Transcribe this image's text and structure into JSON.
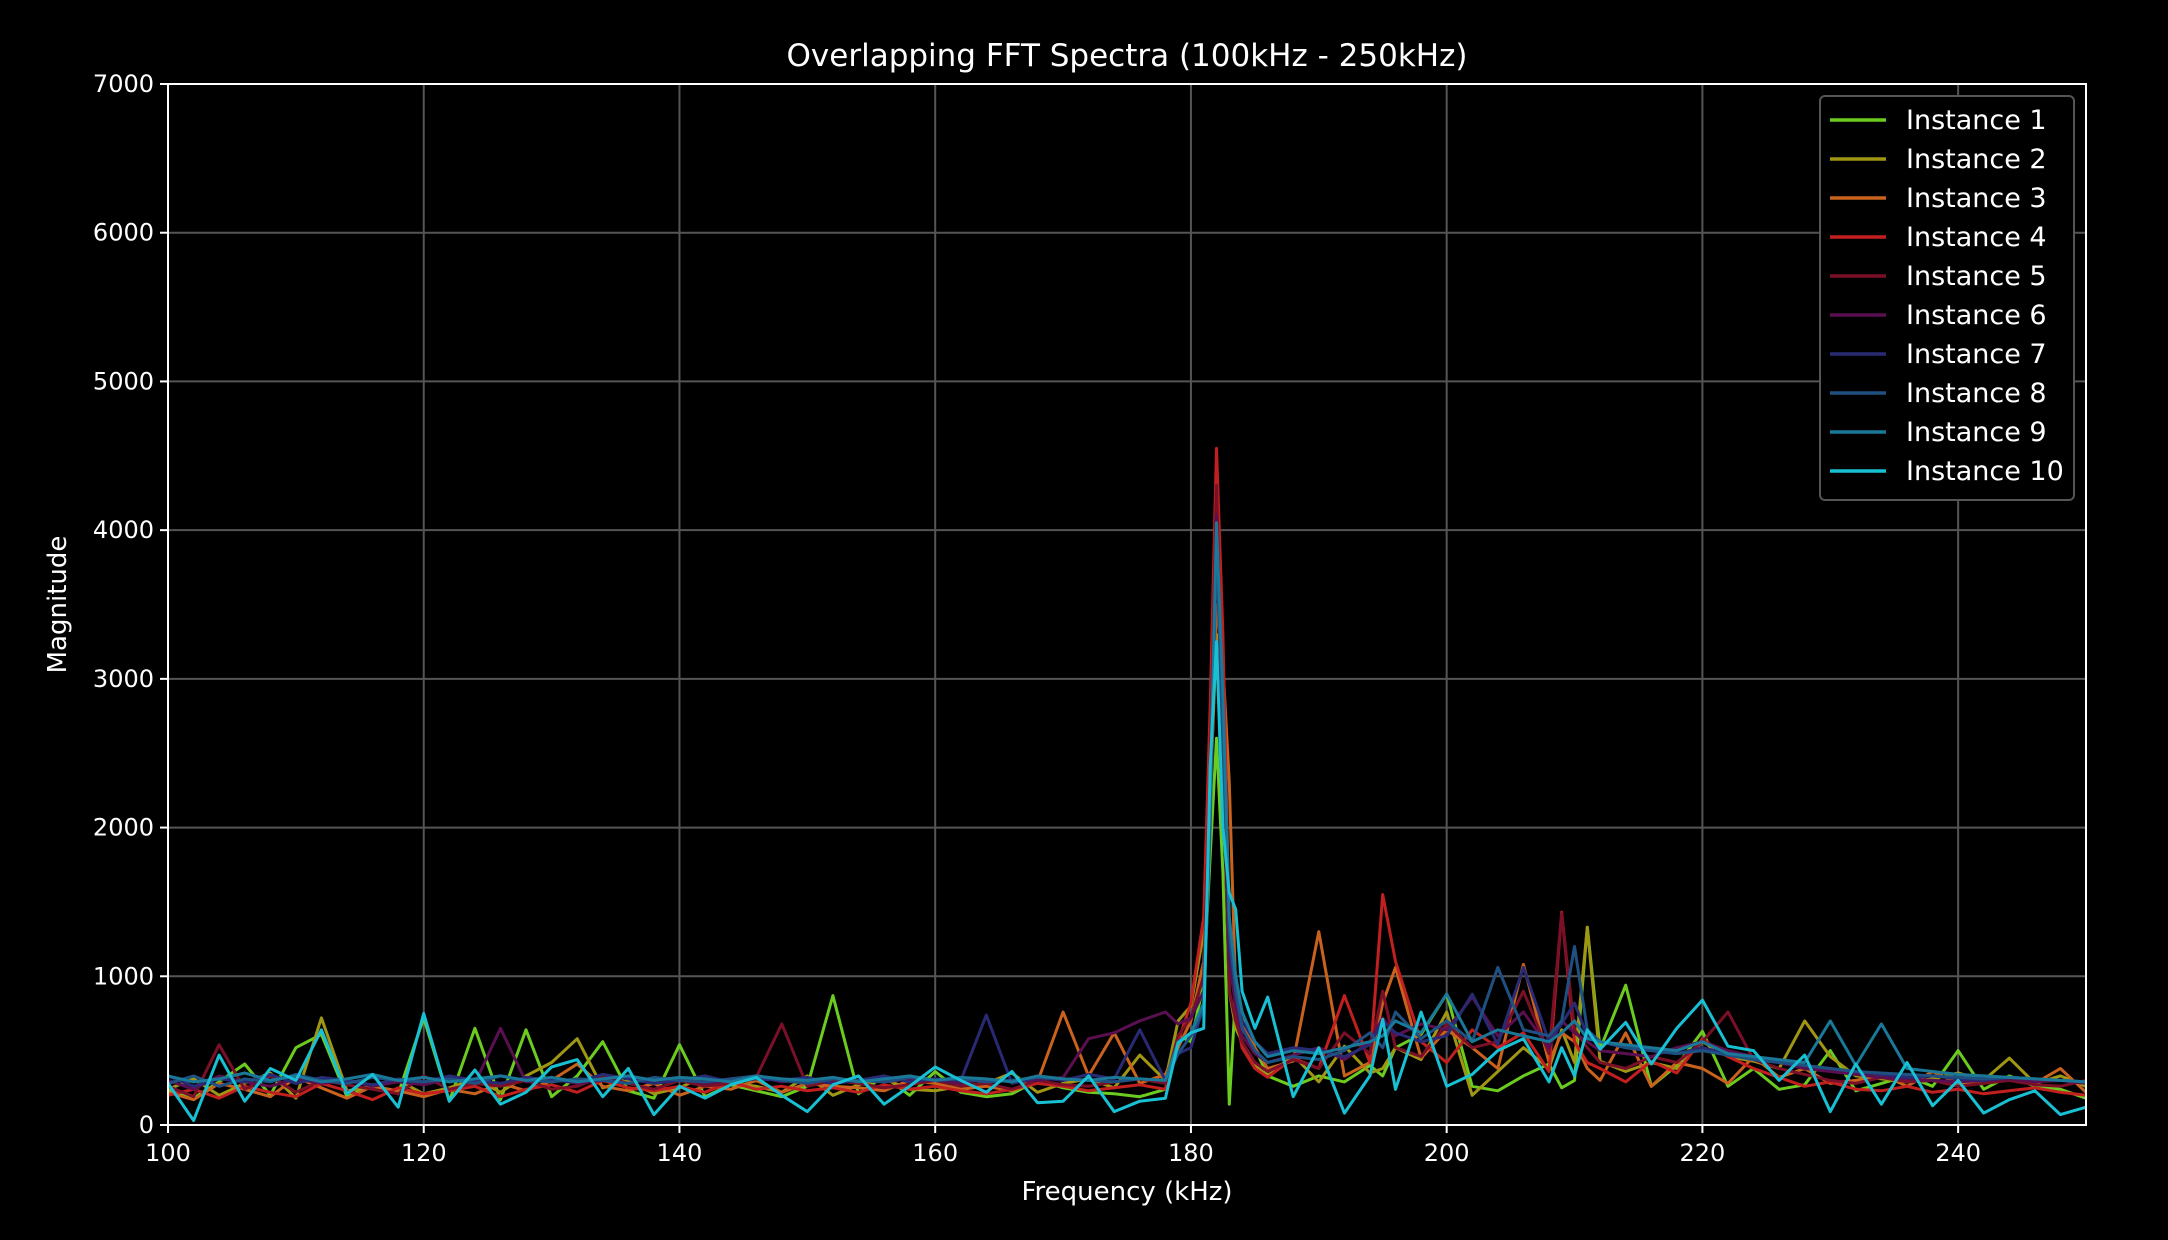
{
  "chart_data": {
    "type": "line",
    "title": "Overlapping FFT Spectra (100kHz - 250kHz)",
    "xlabel": "Frequency (kHz)",
    "ylabel": "Magnitude",
    "xlim": [
      100,
      250
    ],
    "ylim": [
      0,
      7000
    ],
    "x_ticks": [
      100,
      120,
      140,
      160,
      180,
      200,
      220,
      240
    ],
    "y_ticks": [
      0,
      1000,
      2000,
      3000,
      4000,
      5000,
      6000,
      7000
    ],
    "x_tick_labels": [
      "100",
      "120",
      "140",
      "160",
      "180",
      "200",
      "220",
      "240"
    ],
    "y_tick_labels": [
      "0",
      "1000",
      "2000",
      "3000",
      "4000",
      "5000",
      "6000",
      "7000"
    ],
    "grid": true,
    "legend_position": "top-right",
    "x": [
      100,
      102,
      104,
      106,
      108,
      110,
      112,
      114,
      116,
      118,
      120,
      122,
      124,
      126,
      128,
      130,
      132,
      134,
      136,
      138,
      140,
      142,
      144,
      146,
      148,
      150,
      152,
      154,
      156,
      158,
      160,
      162,
      164,
      166,
      168,
      170,
      172,
      174,
      176,
      178,
      179,
      180,
      181,
      181.5,
      182,
      182.5,
      183,
      183.5,
      184,
      185,
      186,
      188,
      190,
      192,
      194,
      195,
      196,
      198,
      200,
      202,
      204,
      206,
      208,
      209,
      210,
      211,
      212,
      214,
      216,
      218,
      220,
      222,
      224,
      226,
      228,
      230,
      232,
      234,
      236,
      238,
      240,
      242,
      244,
      246,
      248,
      250
    ],
    "series": [
      {
        "name": "Instance 1",
        "color": "#6bcb1f",
        "values": [
          230,
          180,
          290,
          410,
          200,
          520,
          610,
          190,
          270,
          210,
          720,
          160,
          650,
          170,
          640,
          190,
          330,
          560,
          230,
          180,
          540,
          190,
          270,
          230,
          190,
          260,
          870,
          210,
          330,
          200,
          360,
          220,
          190,
          210,
          300,
          250,
          220,
          210,
          190,
          240,
          600,
          560,
          950,
          1800,
          2600,
          1700,
          140,
          900,
          760,
          520,
          330,
          260,
          330,
          290,
          400,
          330,
          520,
          610,
          880,
          260,
          230,
          330,
          410,
          250,
          300,
          1330,
          510,
          940,
          260,
          400,
          630,
          260,
          380,
          240,
          270,
          500,
          230,
          280,
          330,
          260,
          500,
          240,
          330,
          260,
          240,
          180
        ]
      },
      {
        "name": "Instance 2",
        "color": "#9f9614",
        "values": [
          240,
          310,
          200,
          280,
          350,
          180,
          720,
          230,
          260,
          300,
          210,
          250,
          310,
          220,
          330,
          420,
          580,
          250,
          300,
          210,
          250,
          330,
          280,
          260,
          220,
          330,
          200,
          270,
          310,
          240,
          230,
          260,
          280,
          350,
          220,
          280,
          310,
          250,
          470,
          300,
          700,
          800,
          1300,
          2200,
          3300,
          2500,
          900,
          650,
          560,
          400,
          330,
          470,
          290,
          530,
          350,
          380,
          520,
          440,
          760,
          200,
          360,
          520,
          380,
          640,
          420,
          1330,
          430,
          360,
          420,
          380,
          560,
          460,
          430,
          380,
          700,
          460,
          330,
          310,
          290,
          310,
          350,
          300,
          450,
          280,
          330,
          260
        ]
      },
      {
        "name": "Instance 3",
        "color": "#c8621c",
        "values": [
          220,
          170,
          280,
          240,
          190,
          320,
          250,
          180,
          260,
          230,
          190,
          240,
          210,
          280,
          230,
          300,
          410,
          260,
          230,
          280,
          200,
          260,
          240,
          300,
          220,
          280,
          260,
          250,
          230,
          300,
          280,
          240,
          260,
          230,
          290,
          760,
          330,
          620,
          280,
          340,
          520,
          700,
          1100,
          2100,
          3500,
          3100,
          2300,
          900,
          700,
          520,
          380,
          430,
          1300,
          330,
          420,
          820,
          1060,
          450,
          640,
          520,
          380,
          1080,
          420,
          620,
          560,
          380,
          300,
          620,
          260,
          420,
          380,
          280,
          460,
          320,
          380,
          280,
          300,
          340,
          260,
          360,
          280,
          300,
          320,
          280,
          380,
          220
        ]
      },
      {
        "name": "Instance 4",
        "color": "#c21f1f",
        "values": [
          200,
          240,
          180,
          260,
          220,
          190,
          280,
          230,
          170,
          250,
          210,
          230,
          260,
          190,
          240,
          270,
          220,
          300,
          250,
          230,
          260,
          220,
          290,
          240,
          260,
          230,
          250,
          220,
          270,
          240,
          260,
          230,
          210,
          240,
          280,
          260,
          230,
          250,
          270,
          240,
          560,
          820,
          1400,
          2800,
          4550,
          3300,
          1300,
          760,
          520,
          380,
          320,
          450,
          380,
          870,
          420,
          1550,
          1100,
          560,
          420,
          640,
          520,
          620,
          360,
          1430,
          560,
          420,
          380,
          290,
          430,
          350,
          580,
          460,
          380,
          320,
          260,
          290,
          240,
          230,
          260,
          220,
          240,
          210,
          230,
          250,
          220,
          200
        ]
      },
      {
        "name": "Instance 5",
        "color": "#7a1028",
        "values": [
          260,
          190,
          540,
          240,
          330,
          220,
          300,
          270,
          240,
          210,
          330,
          240,
          280,
          260,
          300,
          240,
          260,
          330,
          280,
          240,
          300,
          260,
          280,
          320,
          680,
          260,
          300,
          280,
          250,
          270,
          300,
          260,
          280,
          240,
          300,
          270,
          260,
          290,
          310,
          280,
          600,
          720,
          1000,
          2400,
          4300,
          2600,
          900,
          700,
          560,
          420,
          360,
          440,
          380,
          620,
          480,
          900,
          520,
          460,
          680,
          520,
          560,
          900,
          480,
          1420,
          640,
          520,
          420,
          380,
          460,
          420,
          560,
          760,
          440,
          380,
          340,
          300,
          280,
          320,
          290,
          300,
          260,
          280,
          300,
          270,
          260,
          300
        ]
      },
      {
        "name": "Instance 6",
        "color": "#5a1050",
        "values": [
          300,
          240,
          330,
          290,
          260,
          310,
          280,
          300,
          260,
          290,
          270,
          310,
          280,
          650,
          290,
          310,
          280,
          300,
          320,
          290,
          310,
          280,
          300,
          330,
          290,
          310,
          280,
          300,
          290,
          310,
          300,
          280,
          310,
          290,
          300,
          320,
          580,
          620,
          700,
          760,
          680,
          720,
          900,
          2200,
          4100,
          2400,
          1100,
          800,
          600,
          480,
          420,
          470,
          520,
          440,
          560,
          720,
          600,
          680,
          640,
          860,
          600,
          760,
          520,
          700,
          620,
          560,
          500,
          480,
          460,
          520,
          560,
          500,
          460,
          420,
          380,
          360,
          340,
          320,
          310,
          300,
          290,
          300,
          310,
          290,
          300,
          280
        ]
      },
      {
        "name": "Instance 7",
        "color": "#282a74",
        "values": [
          330,
          260,
          310,
          290,
          340,
          280,
          320,
          300,
          270,
          310,
          290,
          330,
          300,
          280,
          320,
          300,
          290,
          340,
          310,
          280,
          300,
          330,
          290,
          310,
          300,
          320,
          280,
          300,
          330,
          290,
          310,
          300,
          740,
          280,
          320,
          300,
          340,
          310,
          640,
          300,
          480,
          520,
          800,
          2100,
          4000,
          2800,
          1200,
          900,
          700,
          560,
          480,
          520,
          500,
          460,
          540,
          700,
          620,
          560,
          600,
          880,
          540,
          1060,
          560,
          680,
          820,
          600,
          560,
          520,
          500,
          480,
          520,
          480,
          460,
          440,
          400,
          380,
          360,
          340,
          320,
          330,
          310,
          300,
          320,
          310,
          300,
          290
        ]
      },
      {
        "name": "Instance 8",
        "color": "#1e5082",
        "values": [
          280,
          330,
          260,
          310,
          290,
          340,
          300,
          280,
          320,
          300,
          290,
          310,
          280,
          330,
          300,
          290,
          310,
          300,
          280,
          320,
          300,
          290,
          310,
          330,
          300,
          280,
          310,
          300,
          290,
          320,
          300,
          310,
          290,
          300,
          320,
          310,
          300,
          290,
          310,
          300,
          480,
          600,
          780,
          2000,
          3900,
          2600,
          1300,
          900,
          650,
          500,
          420,
          460,
          440,
          500,
          620,
          520,
          760,
          580,
          700,
          560,
          1060,
          640,
          600,
          700,
          1200,
          640,
          560,
          520,
          500,
          480,
          500,
          470,
          440,
          420,
          400,
          380,
          360,
          350,
          340,
          330,
          320,
          310,
          320,
          310,
          300,
          290
        ]
      },
      {
        "name": "Instance 9",
        "color": "#1a7898",
        "values": [
          330,
          290,
          310,
          350,
          300,
          330,
          290,
          310,
          340,
          300,
          320,
          290,
          310,
          330,
          300,
          320,
          290,
          310,
          330,
          300,
          320,
          310,
          290,
          330,
          310,
          300,
          320,
          290,
          310,
          330,
          300,
          320,
          310,
          290,
          330,
          310,
          300,
          320,
          310,
          300,
          560,
          620,
          820,
          2200,
          4050,
          2900,
          1400,
          1000,
          760,
          560,
          460,
          500,
          480,
          520,
          560,
          600,
          700,
          620,
          880,
          560,
          640,
          600,
          560,
          620,
          700,
          580,
          560,
          540,
          520,
          500,
          560,
          480,
          460,
          440,
          420,
          700,
          400,
          680,
          380,
          360,
          340,
          330,
          320,
          310,
          300,
          290
        ]
      },
      {
        "name": "Instance 10",
        "color": "#18c0d4",
        "values": [
          280,
          30,
          470,
          160,
          380,
          300,
          640,
          210,
          340,
          120,
          750,
          160,
          370,
          140,
          220,
          390,
          440,
          190,
          380,
          70,
          260,
          180,
          270,
          320,
          200,
          90,
          270,
          330,
          140,
          260,
          390,
          300,
          220,
          360,
          150,
          160,
          330,
          90,
          160,
          180,
          550,
          620,
          650,
          2400,
          3250,
          2000,
          1560,
          1450,
          900,
          650,
          860,
          190,
          520,
          80,
          330,
          710,
          240,
          760,
          260,
          340,
          500,
          580,
          290,
          520,
          330,
          640,
          510,
          690,
          410,
          650,
          840,
          530,
          500,
          300,
          470,
          90,
          410,
          140,
          420,
          130,
          300,
          80,
          170,
          230,
          70,
          120
        ]
      }
    ]
  }
}
